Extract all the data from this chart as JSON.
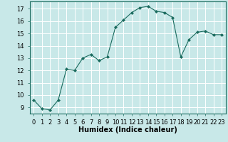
{
  "x": [
    0,
    1,
    2,
    3,
    4,
    5,
    6,
    7,
    8,
    9,
    10,
    11,
    12,
    13,
    14,
    15,
    16,
    17,
    18,
    19,
    20,
    21,
    22,
    23
  ],
  "y": [
    9.6,
    8.9,
    8.8,
    9.6,
    12.1,
    12.0,
    13.0,
    13.3,
    12.8,
    13.1,
    15.5,
    16.1,
    16.7,
    17.1,
    17.2,
    16.8,
    16.7,
    16.3,
    13.1,
    14.5,
    15.1,
    15.2,
    14.9,
    14.9
  ],
  "line_color": "#1a6b5e",
  "marker": "D",
  "marker_size": 2.0,
  "bg_color": "#c8e8e8",
  "grid_color": "#ffffff",
  "xlabel": "Humidex (Indice chaleur)",
  "ylim": [
    8.5,
    17.6
  ],
  "xlim": [
    -0.5,
    23.5
  ],
  "yticks": [
    9,
    10,
    11,
    12,
    13,
    14,
    15,
    16,
    17
  ],
  "xtick_labels": [
    "0",
    "1",
    "2",
    "3",
    "4",
    "5",
    "6",
    "7",
    "8",
    "9",
    "10",
    "11",
    "12",
    "13",
    "14",
    "15",
    "16",
    "17",
    "18",
    "19",
    "20",
    "21",
    "22",
    "23"
  ],
  "xlabel_fontsize": 7,
  "tick_fontsize": 6,
  "spine_color": "#1a6b5e",
  "line_width": 0.8
}
